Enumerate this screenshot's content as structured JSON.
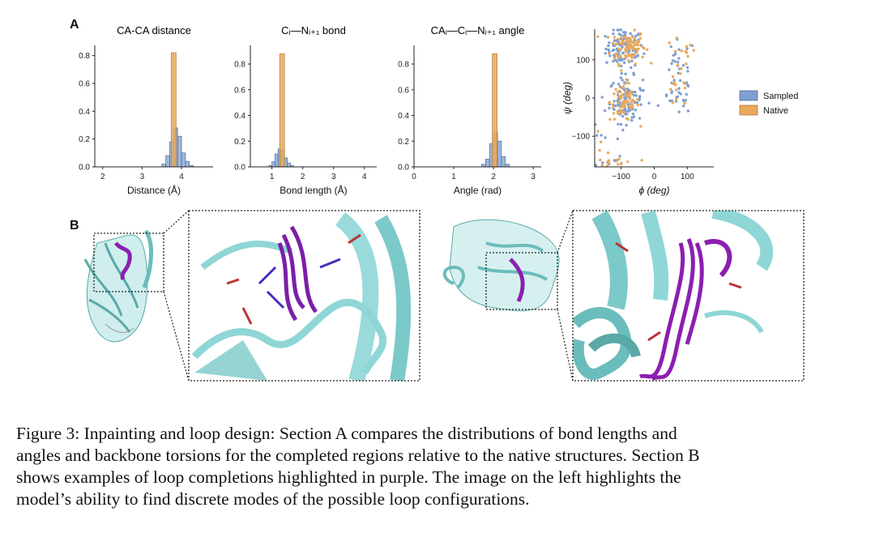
{
  "panels": {
    "a_label": "A",
    "b_label": "B"
  },
  "colors": {
    "sampled": "#7f9fcf",
    "native": "#e8a95c",
    "purple": "#8a1fb0",
    "cyan": "#7fd0d0"
  },
  "chart_data": [
    {
      "type": "bar",
      "title": "CA-CA distance",
      "xlabel": "Distance (Å)",
      "ylabel": "",
      "xlim": [
        1.8,
        4.8
      ],
      "ylim": [
        0,
        0.85
      ],
      "xticks": [
        "2",
        "3",
        "4"
      ],
      "yticks": [
        "0.0",
        "0.2",
        "0.4",
        "0.6",
        "0.8"
      ],
      "series": [
        {
          "name": "Sampled",
          "x": [
            3.55,
            3.65,
            3.75,
            3.85,
            3.95,
            4.05,
            4.15,
            4.25
          ],
          "values": [
            0.02,
            0.08,
            0.18,
            0.28,
            0.22,
            0.1,
            0.04,
            0.01
          ]
        },
        {
          "name": "Native",
          "x": [
            3.8
          ],
          "values": [
            0.82
          ]
        }
      ],
      "bin_width": 0.1
    },
    {
      "type": "bar",
      "title": "Cᵢ—Nᵢ₊₁ bond",
      "xlabel": "Bond length (Å)",
      "ylabel": "",
      "xlim": [
        0.3,
        4.4
      ],
      "ylim": [
        0,
        0.92
      ],
      "xticks": [
        "1",
        "2",
        "3",
        "4"
      ],
      "yticks": [
        "0.0",
        "0.2",
        "0.4",
        "0.6",
        "0.8"
      ],
      "series": [
        {
          "name": "Sampled",
          "x": [
            0.95,
            1.05,
            1.15,
            1.25,
            1.35,
            1.45,
            1.55,
            1.65
          ],
          "values": [
            0.01,
            0.04,
            0.1,
            0.14,
            0.13,
            0.07,
            0.03,
            0.01
          ]
        },
        {
          "name": "Native",
          "x": [
            1.33
          ],
          "values": [
            0.88
          ]
        }
      ],
      "bin_width": 0.1
    },
    {
      "type": "bar",
      "title": "CAᵢ—Cᵢ—Nᵢ₊₁ angle",
      "xlabel": "Angle (rad)",
      "ylabel": "",
      "xlim": [
        0,
        3.2
      ],
      "ylim": [
        0,
        0.92
      ],
      "xticks": [
        "0",
        "1",
        "2",
        "3"
      ],
      "yticks": [
        "0.0",
        "0.2",
        "0.4",
        "0.6",
        "0.8"
      ],
      "series": [
        {
          "name": "Sampled",
          "x": [
            1.75,
            1.85,
            1.95,
            2.05,
            2.15,
            2.25,
            2.35
          ],
          "values": [
            0.02,
            0.06,
            0.18,
            0.27,
            0.2,
            0.08,
            0.02
          ]
        },
        {
          "name": "Native",
          "x": [
            2.03
          ],
          "values": [
            0.88
          ]
        }
      ],
      "bin_width": 0.1
    },
    {
      "type": "scatter",
      "title": "",
      "xlabel": "ϕ (deg)",
      "ylabel": "ψ (deg)",
      "xlim": [
        -180,
        180
      ],
      "ylim": [
        -180,
        180
      ],
      "xticks": [
        "−100",
        "0",
        "100"
      ],
      "yticks": [
        "−100",
        "0",
        "100"
      ],
      "clusters": [
        {
          "name": "Sampled",
          "cx": -90,
          "cy": 130,
          "sx": 28,
          "sy": 25,
          "n": 110
        },
        {
          "name": "Native",
          "cx": -80,
          "cy": 135,
          "sx": 26,
          "sy": 22,
          "n": 90
        },
        {
          "name": "Sampled",
          "cx": -85,
          "cy": -5,
          "sx": 25,
          "sy": 30,
          "n": 100
        },
        {
          "name": "Native",
          "cx": -90,
          "cy": -10,
          "sx": 22,
          "sy": 25,
          "n": 70
        },
        {
          "name": "Sampled",
          "cx": 75,
          "cy": 90,
          "sx": 25,
          "sy": 30,
          "n": 22
        },
        {
          "name": "Native",
          "cx": 80,
          "cy": 100,
          "sx": 25,
          "sy": 30,
          "n": 14
        },
        {
          "name": "Sampled",
          "cx": 70,
          "cy": 0,
          "sx": 22,
          "sy": 22,
          "n": 25
        },
        {
          "name": "Native",
          "cx": 72,
          "cy": 10,
          "sx": 22,
          "sy": 22,
          "n": 12
        },
        {
          "name": "Sampled",
          "cx": -110,
          "cy": -165,
          "sx": 30,
          "sy": 10,
          "n": 8
        },
        {
          "name": "Native",
          "cx": -110,
          "cy": -168,
          "sx": 30,
          "sy": 8,
          "n": 12
        },
        {
          "name": "Sampled",
          "cx": -160,
          "cy": -110,
          "sx": 10,
          "sy": 40,
          "n": 6
        },
        {
          "name": "Native",
          "cx": -155,
          "cy": -120,
          "sx": 10,
          "sy": 30,
          "n": 5
        }
      ],
      "legend": {
        "placement": "right",
        "entries": [
          "Sampled",
          "Native"
        ]
      }
    }
  ],
  "caption": {
    "lines": [
      "Figure 3: Inpainting and loop design: Section A compares the distributions of bond lengths and",
      "angles and backbone torsions for the completed regions relative to the native structures. Section B",
      "shows examples of loop completions highlighted in purple. The image on the left highlights the",
      "model’s ability to find discrete modes of the possible loop configurations."
    ]
  }
}
